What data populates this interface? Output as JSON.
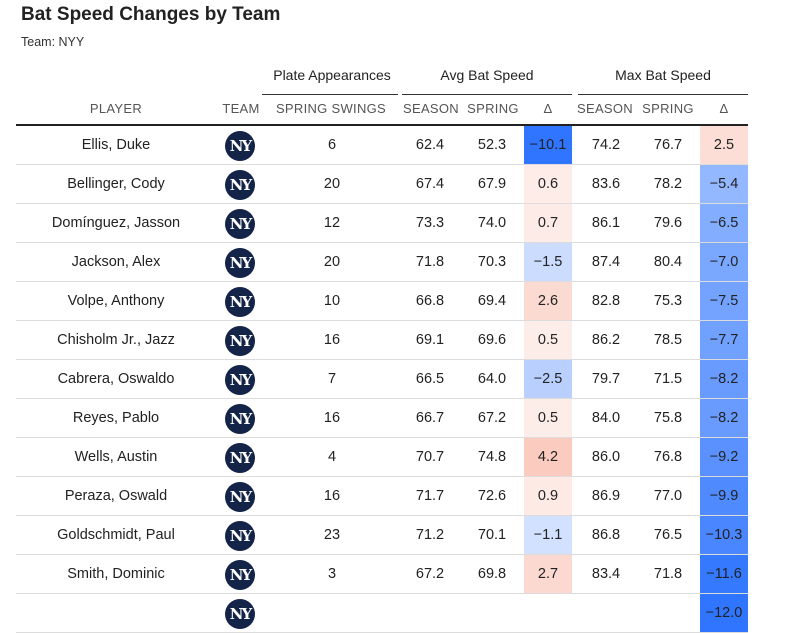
{
  "title": "Bat Speed Changes by Team",
  "subtitle": "Team: NYY",
  "groups": {
    "plate": "Plate Appearances",
    "avg": "Avg Bat Speed",
    "max": "Max Bat Speed"
  },
  "columns": {
    "player": "PLAYER",
    "team": "TEAM",
    "swings": "SPRING SWINGS",
    "avg_season": "SEASON",
    "avg_spring": "SPRING",
    "avg_delta": "Δ",
    "max_season": "SEASON",
    "max_spring": "SPRING",
    "max_delta": "Δ"
  },
  "team_logo": "NY",
  "colors": {
    "positive": "#f4937a",
    "negative": "#2f75ff",
    "logo_bg": "#132448"
  },
  "rows": [
    {
      "player": "Ellis, Duke",
      "swings": "6",
      "avg_season": "62.4",
      "avg_spring": "52.3",
      "avg_delta": "−10.1",
      "max_season": "74.2",
      "max_spring": "76.7",
      "max_delta": "2.5"
    },
    {
      "player": "Bellinger, Cody",
      "swings": "20",
      "avg_season": "67.4",
      "avg_spring": "67.9",
      "avg_delta": "0.6",
      "max_season": "83.6",
      "max_spring": "78.2",
      "max_delta": "−5.4"
    },
    {
      "player": "Domínguez, Jasson",
      "swings": "12",
      "avg_season": "73.3",
      "avg_spring": "74.0",
      "avg_delta": "0.7",
      "max_season": "86.1",
      "max_spring": "79.6",
      "max_delta": "−6.5"
    },
    {
      "player": "Jackson, Alex",
      "swings": "20",
      "avg_season": "71.8",
      "avg_spring": "70.3",
      "avg_delta": "−1.5",
      "max_season": "87.4",
      "max_spring": "80.4",
      "max_delta": "−7.0"
    },
    {
      "player": "Volpe, Anthony",
      "swings": "10",
      "avg_season": "66.8",
      "avg_spring": "69.4",
      "avg_delta": "2.6",
      "max_season": "82.8",
      "max_spring": "75.3",
      "max_delta": "−7.5"
    },
    {
      "player": "Chisholm Jr., Jazz",
      "swings": "16",
      "avg_season": "69.1",
      "avg_spring": "69.6",
      "avg_delta": "0.5",
      "max_season": "86.2",
      "max_spring": "78.5",
      "max_delta": "−7.7"
    },
    {
      "player": "Cabrera, Oswaldo",
      "swings": "7",
      "avg_season": "66.5",
      "avg_spring": "64.0",
      "avg_delta": "−2.5",
      "max_season": "79.7",
      "max_spring": "71.5",
      "max_delta": "−8.2"
    },
    {
      "player": "Reyes, Pablo",
      "swings": "16",
      "avg_season": "66.7",
      "avg_spring": "67.2",
      "avg_delta": "0.5",
      "max_season": "84.0",
      "max_spring": "75.8",
      "max_delta": "−8.2"
    },
    {
      "player": "Wells, Austin",
      "swings": "4",
      "avg_season": "70.7",
      "avg_spring": "74.8",
      "avg_delta": "4.2",
      "max_season": "86.0",
      "max_spring": "76.8",
      "max_delta": "−9.2"
    },
    {
      "player": "Peraza, Oswald",
      "swings": "16",
      "avg_season": "71.7",
      "avg_spring": "72.6",
      "avg_delta": "0.9",
      "max_season": "86.9",
      "max_spring": "77.0",
      "max_delta": "−9.9"
    },
    {
      "player": "Goldschmidt, Paul",
      "swings": "23",
      "avg_season": "71.2",
      "avg_spring": "70.1",
      "avg_delta": "−1.1",
      "max_season": "86.8",
      "max_spring": "76.5",
      "max_delta": "−10.3"
    },
    {
      "player": "Smith, Dominic",
      "swings": "3",
      "avg_season": "67.2",
      "avg_spring": "69.8",
      "avg_delta": "2.7",
      "max_season": "83.4",
      "max_spring": "71.8",
      "max_delta": "−11.6"
    },
    {
      "player": "",
      "swings": "",
      "avg_season": "",
      "avg_spring": "",
      "avg_delta": "",
      "max_season": "",
      "max_spring": "",
      "max_delta": "−12.0"
    }
  ]
}
